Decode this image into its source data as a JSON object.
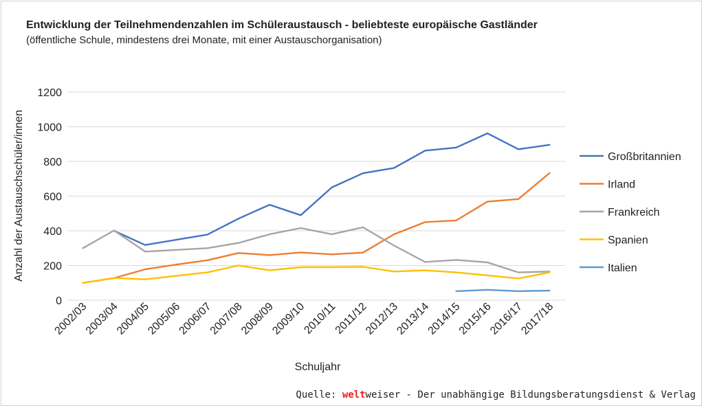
{
  "title": "Entwicklung der Teilnehmendenzahlen im Schüleraustausch - beliebteste europäische Gastländer",
  "subtitle": "(öffentliche Schule, mindestens drei Monate, mit einer Austauschorganisation)",
  "source": {
    "prefix": "Quelle: ",
    "brand_highlight": "welt",
    "brand_rest": "weiser",
    "suffix": " - Der unabhängige Bildungsberatungsdienst & Verlag"
  },
  "chart_data": {
    "type": "line",
    "xlabel": "Schuljahr",
    "ylabel": "Anzahl der Austauschschüler/innen",
    "ylim": [
      0,
      1200
    ],
    "yticks": [
      0,
      200,
      400,
      600,
      800,
      1000,
      1200
    ],
    "grid": true,
    "legend_position": "right",
    "categories": [
      "2002/03",
      "2003/04",
      "2004/05",
      "2005/06",
      "2006/07",
      "2007/08",
      "2008/09",
      "2009/10",
      "2010/11",
      "2011/12",
      "2012/13",
      "2013/14",
      "2014/15",
      "2015/16",
      "2016/17",
      "2017/18"
    ],
    "series": [
      {
        "name": "Großbritannien",
        "color": "#4472c4",
        "values": [
          null,
          400,
          318,
          348,
          378,
          470,
          550,
          490,
          650,
          732,
          762,
          862,
          880,
          962,
          870,
          896
        ]
      },
      {
        "name": "Irland",
        "color": "#ed7d31",
        "values": [
          100,
          127,
          178,
          205,
          230,
          272,
          260,
          275,
          264,
          274,
          380,
          450,
          460,
          568,
          583,
          733
        ]
      },
      {
        "name": "Frankreich",
        "color": "#a5a5a5",
        "values": [
          300,
          402,
          280,
          290,
          300,
          330,
          380,
          416,
          380,
          420,
          315,
          220,
          232,
          218,
          160,
          165
        ]
      },
      {
        "name": "Spanien",
        "color": "#ffc000",
        "values": [
          100,
          128,
          120,
          140,
          160,
          200,
          172,
          190,
          190,
          192,
          165,
          172,
          160,
          143,
          125,
          160
        ]
      },
      {
        "name": "Italien",
        "color": "#5b9bd5",
        "values": [
          null,
          null,
          null,
          null,
          null,
          null,
          null,
          null,
          null,
          null,
          null,
          null,
          52,
          60,
          52,
          55
        ]
      }
    ]
  }
}
